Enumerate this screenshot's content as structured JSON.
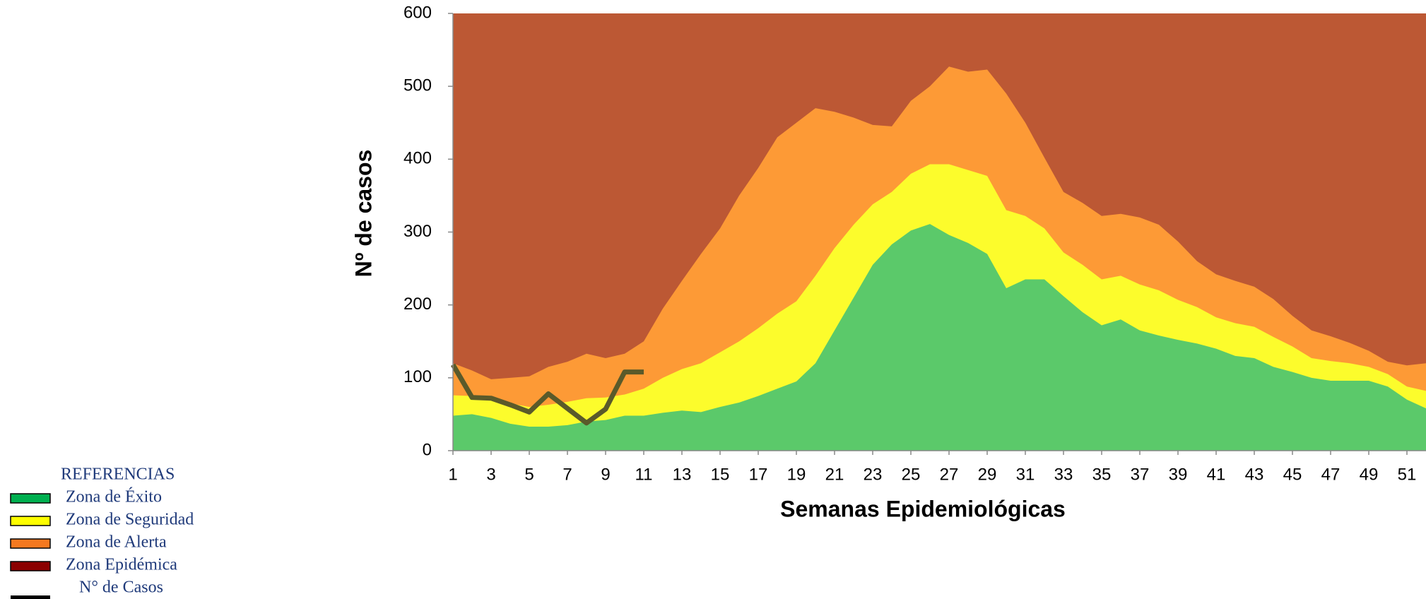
{
  "chart_data": {
    "type": "area",
    "x_label": "Semanas Epidemiológicas",
    "y_label": "Nº de casos",
    "legend_title": "REFERENCIAS",
    "x": [
      1,
      2,
      3,
      4,
      5,
      6,
      7,
      8,
      9,
      10,
      11,
      12,
      13,
      14,
      15,
      16,
      17,
      18,
      19,
      20,
      21,
      22,
      23,
      24,
      25,
      26,
      27,
      28,
      29,
      30,
      31,
      32,
      33,
      34,
      35,
      36,
      37,
      38,
      39,
      40,
      41,
      42,
      43,
      44,
      45,
      46,
      47,
      48,
      49,
      50,
      51,
      52
    ],
    "xlim": [
      1,
      52
    ],
    "xticks": [
      1,
      3,
      5,
      7,
      9,
      11,
      13,
      15,
      17,
      19,
      21,
      23,
      25,
      27,
      29,
      31,
      33,
      35,
      37,
      39,
      41,
      43,
      45,
      47,
      49,
      51
    ],
    "ylim": [
      0,
      600
    ],
    "yticks": [
      0,
      100,
      200,
      300,
      400,
      500,
      600
    ],
    "series": [
      {
        "name": "Zona de Éxito",
        "color": "#5bc96a",
        "legend_color": "#00b050",
        "values": [
          48,
          50,
          45,
          37,
          33,
          33,
          35,
          40,
          42,
          48,
          48,
          52,
          55,
          53,
          60,
          66,
          75,
          85,
          95,
          120,
          165,
          210,
          255,
          283,
          302,
          311,
          296,
          285,
          270,
          223,
          235,
          235,
          212,
          190,
          172,
          180,
          165,
          158,
          152,
          147,
          140,
          130,
          127,
          115,
          108,
          100,
          96,
          96,
          96,
          88,
          70,
          58
        ]
      },
      {
        "name": "Zona de Seguridad",
        "color": "#fcfc2c",
        "legend_color": "#ffff00",
        "values": [
          76,
          75,
          70,
          65,
          60,
          63,
          67,
          72,
          73,
          77,
          85,
          100,
          112,
          120,
          135,
          150,
          168,
          188,
          205,
          240,
          278,
          310,
          338,
          355,
          380,
          393,
          393,
          385,
          377,
          330,
          322,
          305,
          272,
          255,
          235,
          240,
          228,
          220,
          207,
          197,
          183,
          175,
          170,
          156,
          143,
          127,
          123,
          120,
          115,
          105,
          88,
          82
        ]
      },
      {
        "name": "Zona de Alerta",
        "color": "#fd9a36",
        "legend_color": "#f47920",
        "values": [
          120,
          110,
          98,
          100,
          102,
          115,
          122,
          133,
          127,
          133,
          150,
          195,
          233,
          270,
          305,
          350,
          388,
          430,
          450,
          470,
          465,
          457,
          447,
          445,
          480,
          500,
          527,
          520,
          523,
          490,
          450,
          402,
          355,
          340,
          322,
          325,
          320,
          310,
          287,
          260,
          242,
          233,
          225,
          208,
          185,
          165,
          157,
          148,
          137,
          122,
          117,
          120
        ]
      },
      {
        "name": "Zona Epidémica",
        "color": "#bc5834",
        "legend_color": "#8b0000"
      },
      {
        "name": "N° de Casos",
        "type": "line",
        "color": "#5a5a2a",
        "legend_color": "#000000",
        "values": [
          118,
          73,
          72,
          63,
          53,
          78,
          58,
          38,
          57,
          108,
          108,
          null,
          null,
          null,
          null,
          null,
          null,
          null,
          null,
          null,
          null,
          null,
          null,
          null,
          null,
          null,
          null,
          null,
          null,
          null,
          null,
          null,
          null,
          null,
          null,
          null,
          null,
          null,
          null,
          null,
          null,
          null,
          null,
          null,
          null,
          null,
          null,
          null,
          null,
          null,
          null,
          null
        ]
      }
    ]
  }
}
